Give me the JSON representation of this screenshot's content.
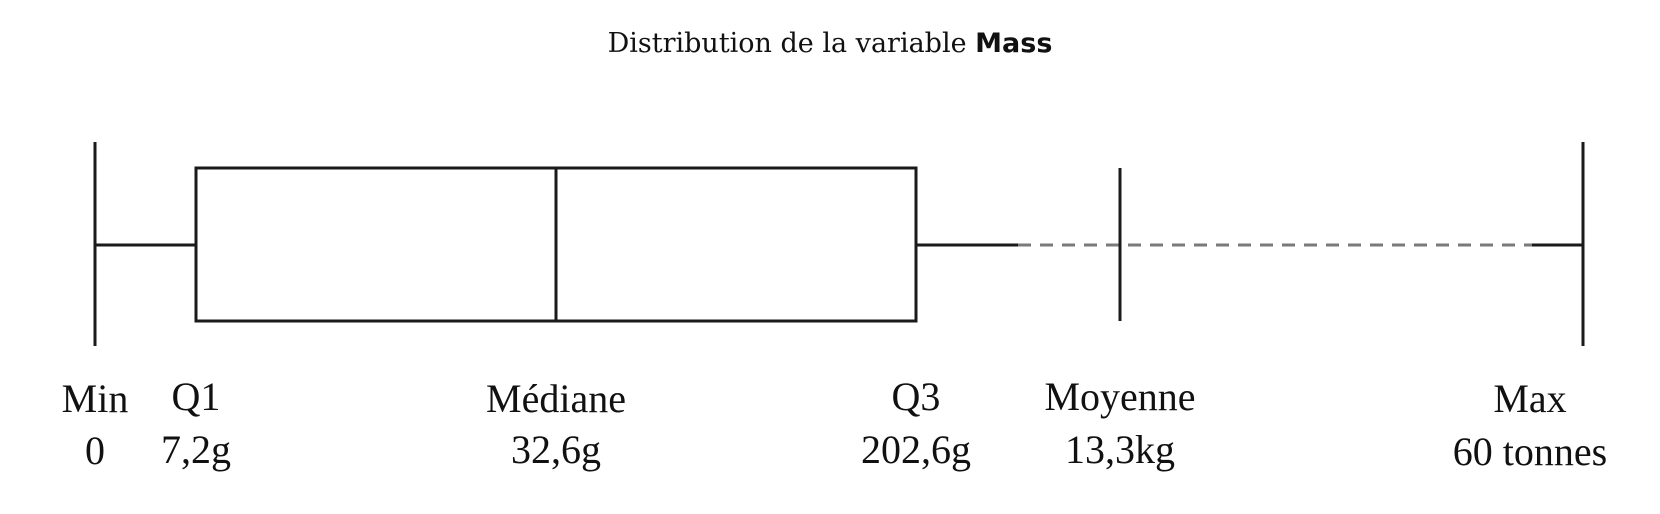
{
  "title": {
    "prefix": "Distribution de la variable ",
    "variable": "Mass"
  },
  "chart_data": {
    "type": "boxplot",
    "axis_scale": "log (non-linear, labels only)",
    "stats": [
      {
        "key": "min",
        "label": "Min",
        "value_text": "0",
        "value_grams": 0
      },
      {
        "key": "q1",
        "label": "Q1",
        "value_text": "7,2g",
        "value_grams": 7.2
      },
      {
        "key": "median",
        "label": "Médiane",
        "value_text": "32,6g",
        "value_grams": 32.6
      },
      {
        "key": "q3",
        "label": "Q3",
        "value_text": "202,6g",
        "value_grams": 202.6
      },
      {
        "key": "mean",
        "label": "Moyenne",
        "value_text": "13,3kg",
        "value_grams": 13300
      },
      {
        "key": "max",
        "label": "Max",
        "value_text": "60 tonnes",
        "value_grams": 60000000
      }
    ],
    "colors": {
      "stroke": "#1a1a1a",
      "dashed": "#7a7a7a"
    }
  }
}
